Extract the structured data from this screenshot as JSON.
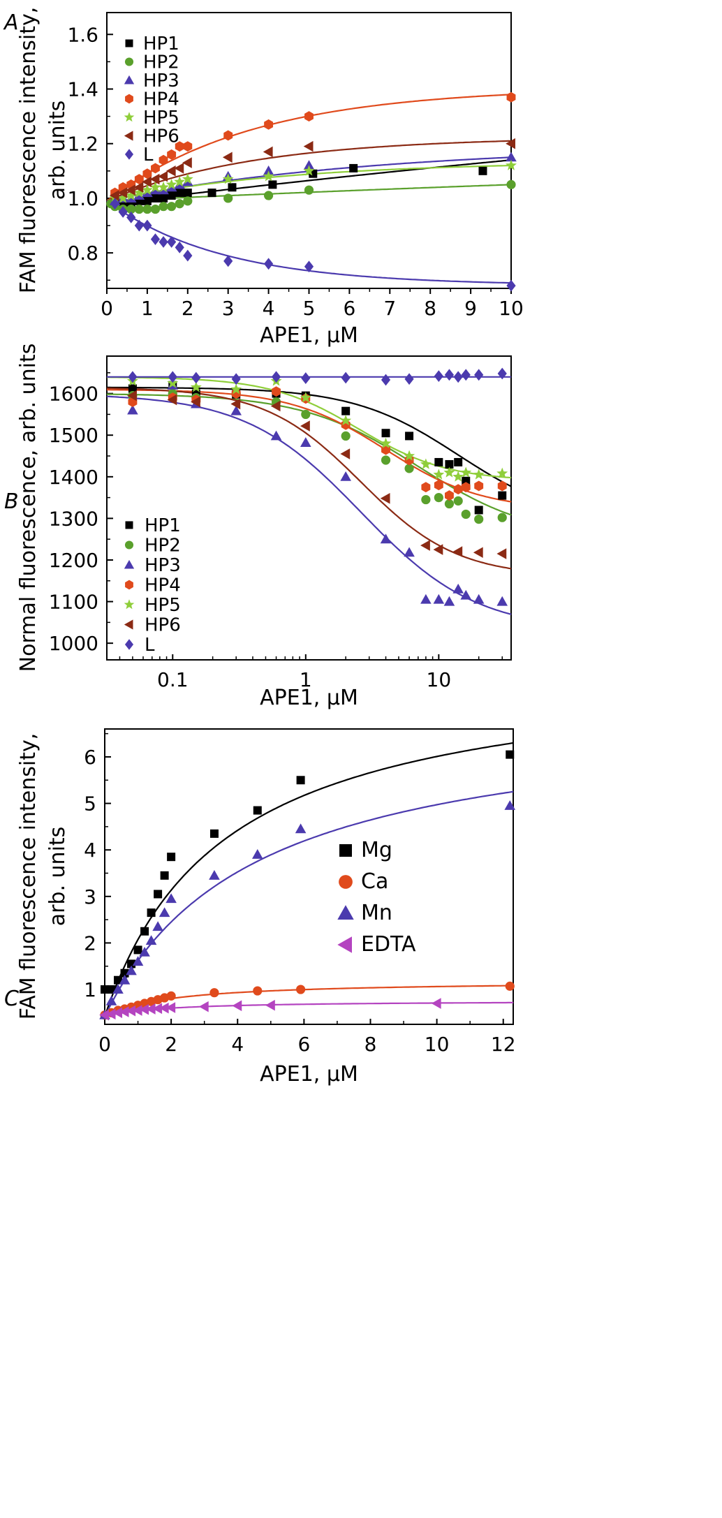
{
  "chart_data": [
    {
      "panel": "A",
      "type": "scatter",
      "xlabel": "APE1, μM",
      "ylabel": [
        "FAM fluorescence intensity,",
        "arb. units"
      ],
      "xlim": [
        0,
        10
      ],
      "ylim": [
        0.67,
        1.68
      ],
      "x_scale": "linear",
      "xticks": [
        0,
        1,
        2,
        3,
        4,
        5,
        6,
        7,
        8,
        9,
        10
      ],
      "xtick_labels": [
        "0",
        "1",
        "2",
        "3",
        "4",
        "5",
        "6",
        "7",
        "8",
        "9",
        "10"
      ],
      "yticks": [
        0.8,
        1.0,
        1.2,
        1.4,
        1.6
      ],
      "ytick_labels": [
        "0.8",
        "1.0",
        "1.2",
        "1.4",
        "1.6"
      ],
      "legend_position": "top-left",
      "grid": false,
      "series": [
        {
          "name": "HP1",
          "marker": "square",
          "color": "#000000",
          "x": [
            0.2,
            0.4,
            0.6,
            0.8,
            1.0,
            1.2,
            1.4,
            1.6,
            1.8,
            2.0,
            2.6,
            3.1,
            4.1,
            5.1,
            6.1,
            9.3
          ],
          "y": [
            0.98,
            0.98,
            0.98,
            0.99,
            0.99,
            1.0,
            1.0,
            1.01,
            1.02,
            1.02,
            1.02,
            1.04,
            1.05,
            1.09,
            1.11,
            1.1
          ],
          "fit": {
            "x0": 0,
            "y0": 0.98,
            "x1": 10,
            "y1": 1.14,
            "curv": 0.05
          }
        },
        {
          "name": "HP2",
          "marker": "circle",
          "color": "#5aa02c",
          "x": [
            0.1,
            0.2,
            0.4,
            0.6,
            0.8,
            1.0,
            1.2,
            1.4,
            1.6,
            1.8,
            2.0,
            3.0,
            4.0,
            5.0,
            10.0
          ],
          "y": [
            0.98,
            0.97,
            0.96,
            0.96,
            0.96,
            0.96,
            0.96,
            0.97,
            0.97,
            0.98,
            0.99,
            1.0,
            1.01,
            1.03,
            1.05
          ],
          "fit": {
            "x0": 0,
            "y0": 0.99,
            "x1": 10,
            "y1": 1.05,
            "curv": 0.05
          }
        },
        {
          "name": "HP3",
          "marker": "triangle",
          "color": "#4b3aae",
          "x": [
            0.2,
            0.4,
            0.6,
            0.8,
            1.0,
            1.2,
            1.4,
            1.6,
            1.8,
            2.0,
            3.0,
            4.0,
            5.0,
            10.0
          ],
          "y": [
            0.99,
            1.0,
            1.0,
            1.01,
            1.02,
            1.03,
            1.03,
            1.04,
            1.05,
            1.06,
            1.08,
            1.1,
            1.12,
            1.15
          ],
          "fit": {
            "x0": 0,
            "y0": 0.99,
            "x1": 10,
            "y1": 1.15,
            "curv": 0.3
          }
        },
        {
          "name": "HP4",
          "marker": "hexagon",
          "color": "#e04a1c",
          "x": [
            0.2,
            0.4,
            0.6,
            0.8,
            1.0,
            1.2,
            1.4,
            1.6,
            1.8,
            2.0,
            3.0,
            4.0,
            5.0,
            10.0
          ],
          "y": [
            1.02,
            1.04,
            1.05,
            1.07,
            1.09,
            1.11,
            1.14,
            1.16,
            1.19,
            1.19,
            1.23,
            1.27,
            1.3,
            1.37
          ],
          "fit": {
            "x0": 0,
            "y0": 0.99,
            "x1": 10,
            "y1": 1.38,
            "curv": 0.55
          }
        },
        {
          "name": "HP5",
          "marker": "star",
          "color": "#8fce3a",
          "x": [
            0.2,
            0.4,
            0.6,
            0.8,
            1.0,
            1.2,
            1.4,
            1.6,
            1.8,
            2.0,
            3.0,
            4.0,
            5.0,
            10.0
          ],
          "y": [
            1.0,
            1.0,
            1.01,
            1.02,
            1.03,
            1.04,
            1.04,
            1.05,
            1.06,
            1.07,
            1.07,
            1.08,
            1.1,
            1.12
          ],
          "fit": {
            "x0": 0,
            "y0": 0.99,
            "x1": 10,
            "y1": 1.12,
            "curv": 0.45
          }
        },
        {
          "name": "HP6",
          "marker": "triangle-left",
          "color": "#8b2a14",
          "x": [
            0.2,
            0.4,
            0.6,
            0.8,
            1.0,
            1.2,
            1.4,
            1.6,
            1.8,
            2.0,
            3.0,
            4.0,
            5.0,
            10.0
          ],
          "y": [
            1.01,
            1.02,
            1.03,
            1.04,
            1.06,
            1.07,
            1.08,
            1.1,
            1.11,
            1.13,
            1.15,
            1.17,
            1.19,
            1.2
          ],
          "fit": {
            "x0": 0,
            "y0": 0.99,
            "x1": 10,
            "y1": 1.21,
            "curv": 0.55
          }
        },
        {
          "name": "L",
          "marker": "diamond",
          "color": "#4b3aae",
          "x": [
            0.2,
            0.4,
            0.6,
            0.8,
            1.0,
            1.2,
            1.4,
            1.6,
            1.8,
            2.0,
            3.0,
            4.0,
            5.0,
            10.0
          ],
          "y": [
            0.98,
            0.95,
            0.93,
            0.9,
            0.9,
            0.85,
            0.84,
            0.84,
            0.82,
            0.79,
            0.77,
            0.76,
            0.75,
            0.68
          ],
          "fit": {
            "x0": 0,
            "y0": 0.99,
            "x1": 10,
            "y1": 0.69,
            "curv": 0.7
          }
        }
      ]
    },
    {
      "panel": "B",
      "type": "scatter",
      "xlabel": "APE1, μM",
      "ylabel": [
        "Normal fluorescence, arb. units"
      ],
      "xlim": [
        0.032,
        35
      ],
      "ylim": [
        960,
        1690
      ],
      "x_scale": "log",
      "xticks": [
        0.1,
        1,
        10
      ],
      "xtick_labels": [
        "0.1",
        "1",
        "10"
      ],
      "yticks": [
        1000,
        1100,
        1200,
        1300,
        1400,
        1500,
        1600
      ],
      "ytick_labels": [
        "1000",
        "1100",
        "1200",
        "1300",
        "1400",
        "1500",
        "1600"
      ],
      "legend_position": "bottom-left",
      "grid": false,
      "series": [
        {
          "name": "HP1",
          "marker": "square",
          "color": "#000000",
          "x": [
            0.05,
            0.1,
            0.15,
            0.3,
            0.6,
            1,
            2,
            4,
            6,
            10,
            12,
            14,
            16,
            20,
            30
          ],
          "y": [
            1612,
            1620,
            1600,
            1598,
            1600,
            1595,
            1558,
            1505,
            1498,
            1435,
            1430,
            1435,
            1390,
            1320,
            1355
          ],
          "fit": {
            "top": 1615,
            "bottom": 1290,
            "ec50": 14,
            "n": 1.1
          }
        },
        {
          "name": "HP2",
          "marker": "circle",
          "color": "#5aa02c",
          "x": [
            0.05,
            0.1,
            0.15,
            0.3,
            0.6,
            1,
            2,
            4,
            6,
            8,
            10,
            12,
            14,
            16,
            20,
            30
          ],
          "y": [
            1595,
            1600,
            1590,
            1600,
            1580,
            1550,
            1498,
            1440,
            1420,
            1345,
            1350,
            1335,
            1342,
            1310,
            1298,
            1302
          ],
          "fit": {
            "top": 1600,
            "bottom": 1250,
            "ec50": 7,
            "n": 1.0
          }
        },
        {
          "name": "HP3",
          "marker": "triangle",
          "color": "#4b3aae",
          "x": [
            0.05,
            0.1,
            0.15,
            0.3,
            0.6,
            1,
            2,
            4,
            6,
            8,
            10,
            12,
            14,
            16,
            20,
            30
          ],
          "y": [
            1560,
            1620,
            1575,
            1558,
            1498,
            1482,
            1400,
            1250,
            1218,
            1105,
            1105,
            1100,
            1130,
            1115,
            1105,
            1100
          ],
          "fit": {
            "top": 1600,
            "bottom": 1030,
            "ec50": 2.6,
            "n": 1.0
          }
        },
        {
          "name": "HP4",
          "marker": "hexagon",
          "color": "#e04a1c",
          "x": [
            0.05,
            0.1,
            0.15,
            0.3,
            0.6,
            1,
            2,
            4,
            6,
            8,
            10,
            12,
            14,
            16,
            20,
            30
          ],
          "y": [
            1580,
            1590,
            1585,
            1600,
            1605,
            1588,
            1525,
            1465,
            1440,
            1375,
            1380,
            1355,
            1370,
            1375,
            1378,
            1378
          ],
          "fit": {
            "top": 1610,
            "bottom": 1320,
            "ec50": 4,
            "n": 1.2
          }
        },
        {
          "name": "HP5",
          "marker": "star",
          "color": "#8fce3a",
          "x": [
            0.05,
            0.1,
            0.15,
            0.3,
            0.6,
            1,
            2,
            4,
            6,
            8,
            10,
            12,
            14,
            16,
            20,
            30
          ],
          "y": [
            1630,
            1625,
            1615,
            1610,
            1630,
            1590,
            1535,
            1480,
            1450,
            1430,
            1405,
            1410,
            1400,
            1410,
            1405,
            1408
          ],
          "fit": {
            "top": 1640,
            "bottom": 1390,
            "ec50": 2.5,
            "n": 1.3
          }
        },
        {
          "name": "HP6",
          "marker": "triangle-left",
          "color": "#8b2a14",
          "x": [
            0.05,
            0.1,
            0.15,
            0.3,
            0.6,
            1,
            2,
            4,
            8,
            10,
            14,
            20,
            30
          ],
          "y": [
            1595,
            1585,
            1580,
            1575,
            1570,
            1522,
            1455,
            1348,
            1235,
            1225,
            1220,
            1218,
            1215
          ],
          "fit": {
            "top": 1615,
            "bottom": 1160,
            "ec50": 2.6,
            "n": 1.2
          }
        },
        {
          "name": "L",
          "marker": "diamond",
          "color": "#4b3aae",
          "x": [
            0.05,
            0.1,
            0.15,
            0.3,
            0.6,
            1,
            2,
            4,
            6,
            10,
            12,
            14,
            16,
            20,
            30
          ],
          "y": [
            1640,
            1640,
            1638,
            1635,
            1640,
            1637,
            1638,
            1633,
            1635,
            1642,
            1645,
            1640,
            1645,
            1645,
            1648
          ],
          "fit": {
            "top": 1640,
            "bottom": 1640,
            "ec50": 5,
            "n": 1
          }
        }
      ]
    },
    {
      "panel": "C",
      "type": "scatter",
      "xlabel": "APE1, μM",
      "ylabel": [
        "FAM fluorescence intensity,",
        "arb. units"
      ],
      "xlim": [
        0,
        12.3
      ],
      "ylim": [
        0.25,
        6.6
      ],
      "x_scale": "linear",
      "xticks": [
        0,
        2,
        4,
        6,
        8,
        10,
        12
      ],
      "xtick_labels": [
        "0",
        "2",
        "4",
        "6",
        "8",
        "10",
        "12"
      ],
      "yticks": [
        1,
        2,
        3,
        4,
        5,
        6
      ],
      "ytick_labels": [
        "1",
        "2",
        "3",
        "4",
        "5",
        "6"
      ],
      "legend_position": "center-right",
      "grid": false,
      "series": [
        {
          "name": "Mg",
          "marker": "square",
          "color": "#000000",
          "x": [
            0,
            0.2,
            0.4,
            0.6,
            0.8,
            1.0,
            1.2,
            1.4,
            1.6,
            1.8,
            2.0,
            3.3,
            4.6,
            5.9,
            12.2
          ],
          "y": [
            1.0,
            1.0,
            1.2,
            1.35,
            1.55,
            1.85,
            2.25,
            2.65,
            3.05,
            3.45,
            3.85,
            4.35,
            4.85,
            5.5,
            6.05
          ],
          "fit": {
            "b": 0.42,
            "a": 7.6,
            "k": 3.6
          }
        },
        {
          "name": "Ca",
          "marker": "circle",
          "color": "#e04a1c",
          "x": [
            0,
            0.2,
            0.4,
            0.6,
            0.8,
            1.0,
            1.2,
            1.4,
            1.6,
            1.8,
            2.0,
            3.3,
            4.6,
            5.9,
            12.2
          ],
          "y": [
            0.45,
            0.5,
            0.55,
            0.58,
            0.62,
            0.66,
            0.7,
            0.74,
            0.78,
            0.82,
            0.86,
            0.93,
            0.97,
            1.0,
            1.07
          ],
          "fit": {
            "b": 0.42,
            "a": 0.77,
            "k": 2.0
          }
        },
        {
          "name": "Mn",
          "marker": "triangle",
          "color": "#4b3aae",
          "x": [
            0,
            0.2,
            0.4,
            0.6,
            0.8,
            1.0,
            1.2,
            1.4,
            1.6,
            1.8,
            2.0,
            3.3,
            4.6,
            5.9,
            12.2
          ],
          "y": [
            0.45,
            0.75,
            1.0,
            1.2,
            1.4,
            1.6,
            1.8,
            2.05,
            2.35,
            2.65,
            2.95,
            3.45,
            3.9,
            4.45,
            4.95
          ],
          "fit": {
            "b": 0.42,
            "a": 6.6,
            "k": 4.5
          }
        },
        {
          "name": "EDTA",
          "marker": "triangle-left",
          "color": "#b444c0",
          "x": [
            0,
            0.2,
            0.4,
            0.6,
            0.8,
            1.0,
            1.2,
            1.4,
            1.6,
            1.8,
            2.0,
            3.0,
            4.0,
            5.0,
            10.0
          ],
          "y": [
            0.45,
            0.47,
            0.5,
            0.52,
            0.54,
            0.55,
            0.57,
            0.58,
            0.59,
            0.6,
            0.61,
            0.63,
            0.65,
            0.66,
            0.7
          ],
          "fit": {
            "b": 0.42,
            "a": 0.34,
            "k": 1.8
          }
        }
      ]
    }
  ],
  "panel_letters": {
    "A": "A",
    "B": "B",
    "C": "C"
  }
}
